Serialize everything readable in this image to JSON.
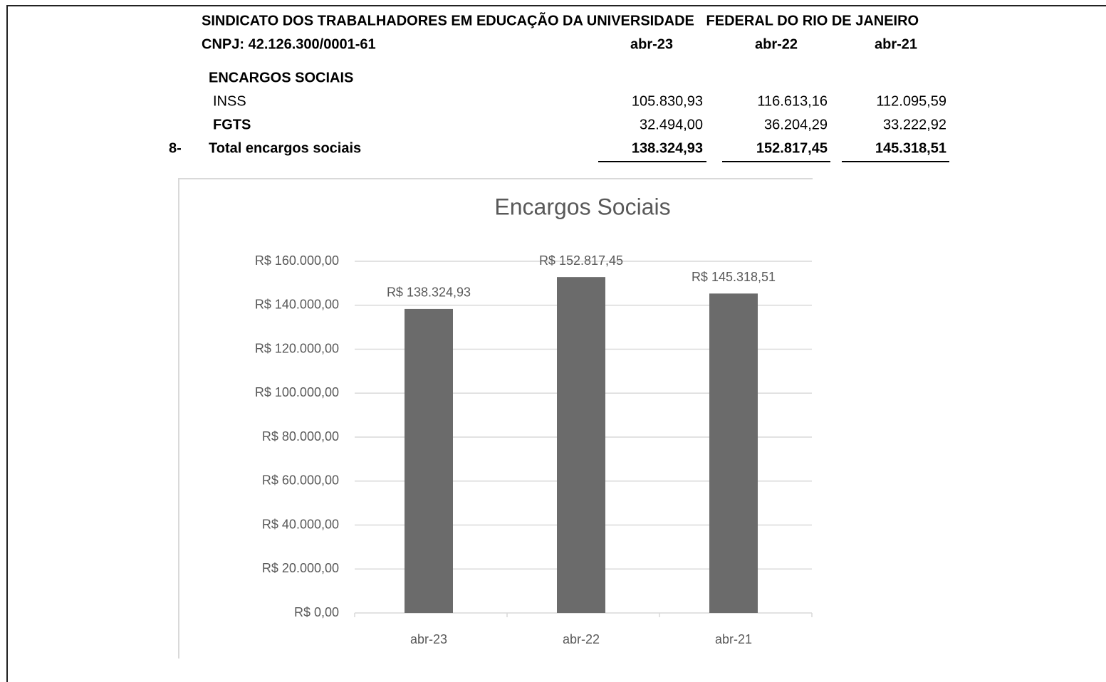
{
  "header": {
    "title": "SINDICATO DOS TRABALHADORES EM EDUCAÇÃO DA UNIVERSIDADE   FEDERAL DO RIO DE JANEIRO",
    "cnpj": "CNPJ: 42.126.300/0001-61",
    "columns": [
      "abr-23",
      "abr-22",
      "abr-21"
    ]
  },
  "table": {
    "section": "ENCARGOS SOCIAIS",
    "rows": [
      {
        "label": "INSS",
        "values": [
          "105.830,93",
          "116.613,16",
          "112.095,59"
        ]
      },
      {
        "label": "FGTS",
        "values": [
          "32.494,00",
          "36.204,29",
          "33.222,92"
        ]
      }
    ],
    "total": {
      "number": "8-",
      "label": "Total encargos sociais",
      "values": [
        "138.324,93",
        "152.817,45",
        "145.318,51"
      ]
    }
  },
  "chart_data": {
    "type": "bar",
    "title": "Encargos Sociais",
    "categories": [
      "abr-23",
      "abr-22",
      "abr-21"
    ],
    "values": [
      138324.93,
      152817.45,
      145318.51
    ],
    "value_labels": [
      "R$ 138.324,93",
      "R$ 152.817,45",
      "R$ 145.318,51"
    ],
    "color": "#6b6b6b",
    "grid": true,
    "ylim": [
      0,
      160000
    ],
    "yticks": [
      {
        "value": 0,
        "label": "R$ 0,00"
      },
      {
        "value": 20000,
        "label": "R$ 20.000,00"
      },
      {
        "value": 40000,
        "label": "R$ 40.000,00"
      },
      {
        "value": 60000,
        "label": "R$ 60.000,00"
      },
      {
        "value": 80000,
        "label": "R$ 80.000,00"
      },
      {
        "value": 100000,
        "label": "R$ 100.000,00"
      },
      {
        "value": 120000,
        "label": "R$ 120.000,00"
      },
      {
        "value": 140000,
        "label": "R$ 140.000,00"
      },
      {
        "value": 160000,
        "label": "R$ 160.000,00"
      }
    ]
  }
}
